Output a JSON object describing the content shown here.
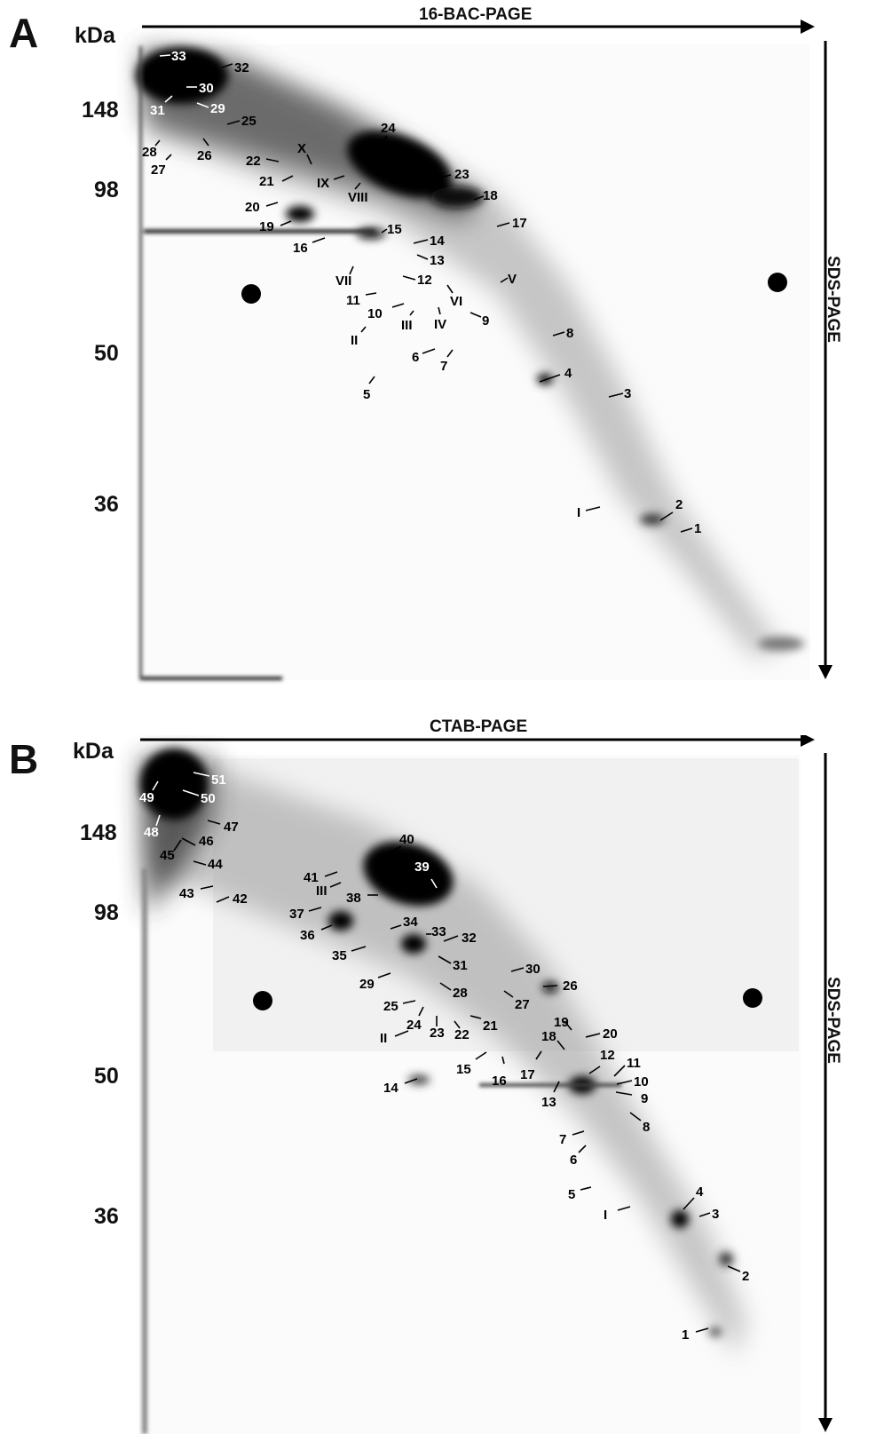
{
  "panel_a": {
    "letter": "A",
    "unit": "kDa",
    "x_axis_title": "16-BAC-PAGE",
    "y_axis_title": "SDS-PAGE",
    "markers": [
      "148",
      "98",
      "50",
      "36"
    ],
    "spot_labels": [
      "1",
      "2",
      "3",
      "4",
      "5",
      "6",
      "7",
      "8",
      "9",
      "10",
      "11",
      "12",
      "13",
      "14",
      "15",
      "16",
      "17",
      "18",
      "19",
      "20",
      "21",
      "22",
      "23",
      "24",
      "25",
      "26",
      "27",
      "28",
      "29",
      "30",
      "31",
      "32",
      "33"
    ],
    "roman_labels": [
      "I",
      "II",
      "III",
      "IV",
      "V",
      "VI",
      "VII",
      "VIII",
      "IX",
      "X"
    ]
  },
  "panel_b": {
    "letter": "B",
    "unit": "kDa",
    "x_axis_title": "CTAB-PAGE",
    "y_axis_title": "SDS-PAGE",
    "markers": [
      "148",
      "98",
      "50",
      "36"
    ],
    "spot_labels": [
      "1",
      "2",
      "3",
      "4",
      "5",
      "6",
      "7",
      "8",
      "9",
      "10",
      "11",
      "12",
      "13",
      "14",
      "15",
      "16",
      "17",
      "18",
      "19",
      "20",
      "21",
      "22",
      "23",
      "24",
      "25",
      "26",
      "27",
      "28",
      "29",
      "30",
      "31",
      "32",
      "33",
      "34",
      "35",
      "36",
      "37",
      "38",
      "39",
      "40",
      "41",
      "42",
      "43",
      "44",
      "45",
      "46",
      "47",
      "48",
      "49",
      "50",
      "51"
    ],
    "roman_labels": [
      "I",
      "II",
      "III"
    ]
  }
}
